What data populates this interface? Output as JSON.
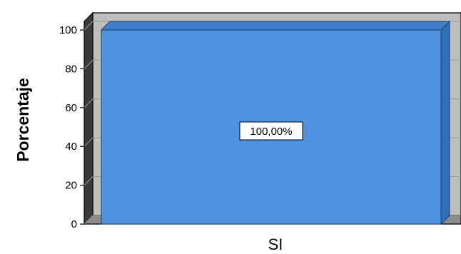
{
  "chart_data": {
    "type": "bar",
    "categories": [
      "SI"
    ],
    "values": [
      100
    ],
    "data_labels": [
      "100,00%"
    ],
    "ylabel": "Porcentaje",
    "xlabel": "",
    "ylim": [
      0,
      100
    ],
    "yticks": [
      "0",
      "20",
      "40",
      "60",
      "80",
      "100"
    ],
    "grid": true,
    "bar_color": "#4F92E0",
    "bar_top_color": "#2F6FBA",
    "back_wall_color": "#BEBEBE",
    "floor_color": "#8C8C8C"
  }
}
